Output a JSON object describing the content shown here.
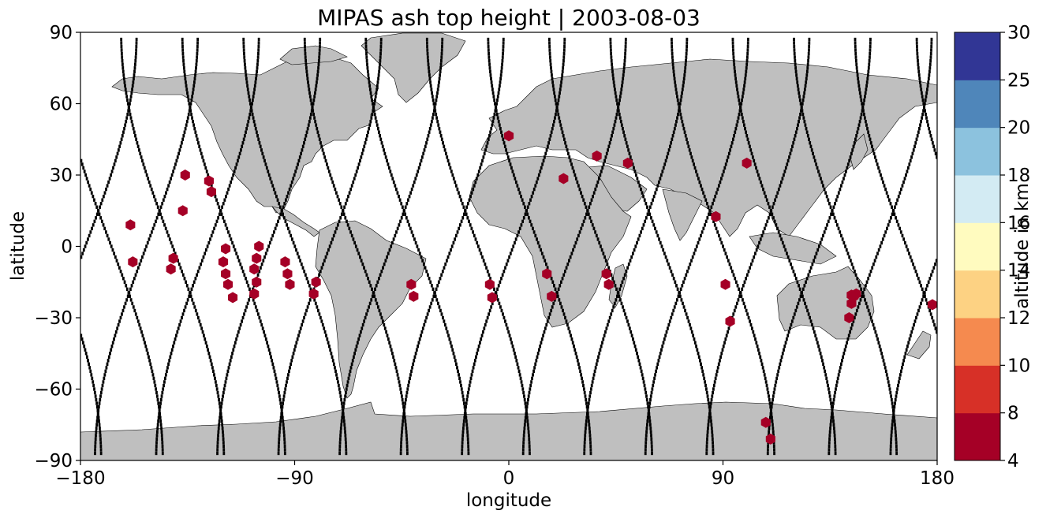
{
  "chart_data": {
    "type": "scatter",
    "title": "MIPAS ash top height | 2003-08-03",
    "xlabel": "longitude",
    "ylabel": "latitude",
    "xlim": [
      -180,
      180
    ],
    "ylim": [
      -90,
      90
    ],
    "xticks": [
      -180,
      -90,
      0,
      90,
      180
    ],
    "yticks": [
      -90,
      -60,
      -30,
      0,
      30,
      60,
      90
    ],
    "xtick_labels": [
      "−180",
      "−90",
      "0",
      "90",
      "180"
    ],
    "ytick_labels": [
      "−90",
      "−60",
      "−30",
      "0",
      "30",
      "60",
      "90"
    ],
    "background": "world map with grey land masses and black MIPAS orbit track dots",
    "colors": {
      "land": "#bfbfbf",
      "track": "#000000",
      "ash_marker": "#a50026"
    },
    "colorbar": {
      "label": "altitude in km",
      "bounds": [
        4,
        8,
        10,
        12,
        14,
        16,
        18,
        20,
        25,
        30
      ],
      "tick_labels": [
        "4",
        "8",
        "10",
        "12",
        "14",
        "16",
        "18",
        "20",
        "25",
        "30"
      ],
      "colors": [
        "#a50026",
        "#d73027",
        "#f46d43",
        "#fdae61",
        "#fee090",
        "#ffffbf",
        "#e0f3f8",
        "#abd9e9",
        "#74add1",
        "#4575b4",
        "#313695"
      ],
      "bin_colors": [
        "#a50026",
        "#d73027",
        "#f58a4f",
        "#fdd283",
        "#fffbbf",
        "#d3ebf3",
        "#8cc2de",
        "#4f86ba",
        "#313695"
      ]
    },
    "series": [
      {
        "marker": "hexagon",
        "altitude_km": "4–8",
        "points": [
          [
            -159,
            9
          ],
          [
            -158,
            -6.5
          ],
          [
            -142,
            -9.5
          ],
          [
            -141,
            -5
          ],
          [
            -136,
            30
          ],
          [
            -137,
            15
          ],
          [
            -126,
            27.5
          ],
          [
            -125,
            23
          ],
          [
            -119,
            -1
          ],
          [
            -120,
            -6.5
          ],
          [
            -119,
            -11.5
          ],
          [
            -118,
            -16
          ],
          [
            -116,
            -21.5
          ],
          [
            -105,
            0
          ],
          [
            -106,
            -5
          ],
          [
            -107,
            -9.5
          ],
          [
            -106,
            -15
          ],
          [
            -107,
            -20
          ],
          [
            -94,
            -6.5
          ],
          [
            -93,
            -11.5
          ],
          [
            -92,
            -16
          ],
          [
            -81,
            -15
          ],
          [
            -82,
            -20
          ],
          [
            -41,
            -16
          ],
          [
            -40,
            -21
          ],
          [
            -8,
            -16
          ],
          [
            -7,
            -21.5
          ],
          [
            0,
            46.5
          ],
          [
            16,
            -11.5
          ],
          [
            18,
            -21
          ],
          [
            23,
            28.5
          ],
          [
            37,
            38
          ],
          [
            41,
            -11.5
          ],
          [
            42,
            -16
          ],
          [
            50,
            35
          ],
          [
            87,
            12.5
          ],
          [
            91,
            -16
          ],
          [
            93,
            -31.5
          ],
          [
            100,
            35
          ],
          [
            108,
            -74
          ],
          [
            110,
            -81
          ],
          [
            143,
            -30
          ],
          [
            144,
            -24
          ],
          [
            145,
            -21
          ],
          [
            146,
            -20
          ],
          [
            144,
            -20.5
          ],
          [
            178,
            -24.5
          ]
        ]
      }
    ]
  }
}
